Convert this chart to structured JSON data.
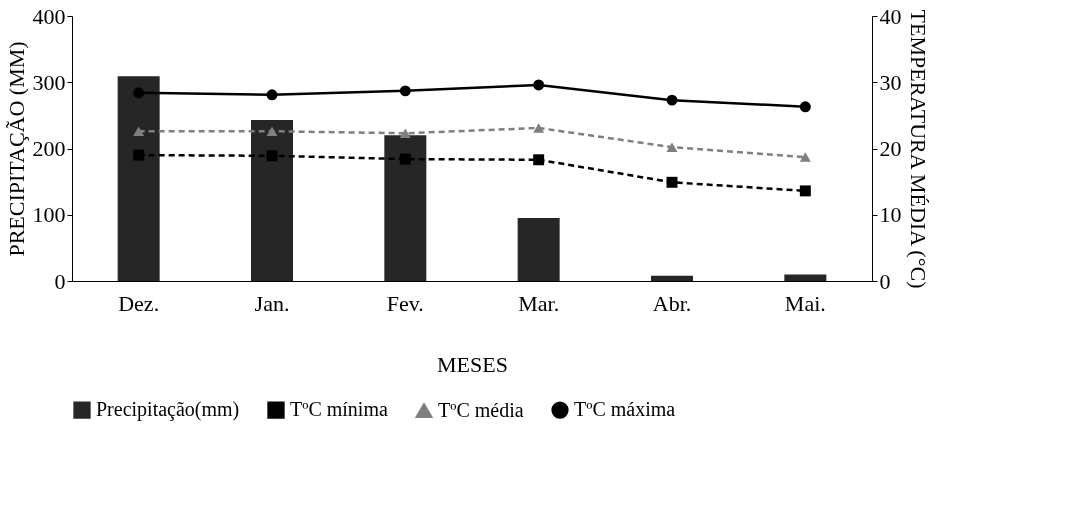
{
  "chart_data": {
    "type": "bar",
    "xlabel": "MESES",
    "ylabel": "PRECIPITAÇÃO (MM)",
    "y2label": "TEMPERATURA MÉDIA (°C)",
    "categories": [
      "Dez.",
      "Jan.",
      "Fev.",
      "Mar.",
      "Abr.",
      "Mai."
    ],
    "ylim": [
      0,
      400
    ],
    "yticks": [
      0,
      100,
      200,
      300,
      400
    ],
    "y2lim": [
      0,
      40
    ],
    "y2ticks": [
      0,
      10,
      20,
      30,
      40
    ],
    "grid": false,
    "legend": "bottom",
    "series": [
      {
        "name": "Precipitação(mm)",
        "color": "#262626",
        "values": [
          309,
          243,
          220,
          95,
          8,
          10
        ]
      },
      {
        "name": "TºC mínima",
        "type": "line",
        "axis": "y2",
        "color": "#000000",
        "marker": "square",
        "line_style": "dashed",
        "values": [
          19.0,
          18.9,
          18.4,
          18.3,
          14.9,
          13.6
        ]
      },
      {
        "name": "TºC média",
        "type": "line",
        "axis": "y2",
        "color": "#7f7f7f",
        "marker": "triangle",
        "line_style": "dashed",
        "values": [
          22.6,
          22.6,
          22.3,
          23.1,
          20.2,
          18.7
        ]
      },
      {
        "name": "TºC máxima",
        "type": "line",
        "axis": "y2",
        "color": "#000000",
        "marker": "circle",
        "line_style": "solid",
        "values": [
          28.4,
          28.1,
          28.7,
          29.6,
          27.3,
          26.3
        ]
      }
    ]
  }
}
